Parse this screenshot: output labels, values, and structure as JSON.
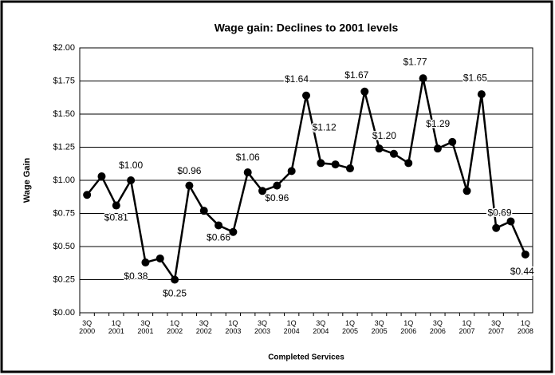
{
  "chart_data": {
    "type": "line",
    "title": "Wage gain:  Declines to 2001 levels",
    "x_label": "Completed Services",
    "y_label": "Wage Gain",
    "categories": [
      "3Q 2000",
      null,
      "1Q 2001",
      null,
      "3Q 2001",
      null,
      "1Q 2002",
      null,
      "3Q 2002",
      null,
      "1Q 2003",
      null,
      "3Q 2003",
      null,
      "1Q 2004",
      null,
      "3Q 2004",
      null,
      "1Q 2005",
      null,
      "3Q 2005",
      null,
      "1Q 2006",
      null,
      "3Q 2006",
      null,
      "1Q 2007",
      null,
      "3Q 2007",
      null,
      "1Q 2008"
    ],
    "series": [
      {
        "name": "Wage gain",
        "color": "#000000",
        "values": [
          0.89,
          1.03,
          0.81,
          1.0,
          0.38,
          0.41,
          0.25,
          0.96,
          0.77,
          0.66,
          0.61,
          1.06,
          0.92,
          0.96,
          1.07,
          1.64,
          1.13,
          1.12,
          1.09,
          1.67,
          1.24,
          1.2,
          1.13,
          1.77,
          1.24,
          1.29,
          0.92,
          1.65,
          0.64,
          0.69,
          0.44
        ],
        "value_labels": [
          null,
          null,
          "$0.81",
          "$1.00",
          "$0.38",
          null,
          "$0.25",
          "$0.96",
          null,
          "$0.66",
          null,
          "$1.06",
          null,
          "$0.96",
          null,
          "$1.64",
          null,
          "$1.12",
          null,
          "$1.67",
          null,
          "$1.20",
          null,
          "$1.77",
          null,
          "$1.29",
          null,
          "$1.65",
          null,
          "$0.69",
          "$0.44"
        ]
      }
    ],
    "ylim": [
      0,
      2
    ],
    "yticks": [
      {
        "value": 0,
        "label": "$0.00"
      },
      {
        "value": 0.25,
        "label": "$0.25"
      },
      {
        "value": 0.5,
        "label": "$0.50"
      },
      {
        "value": 0.75,
        "label": "$0.75"
      },
      {
        "value": 1,
        "label": "$1.00"
      },
      {
        "value": 1.25,
        "label": "$1.25"
      },
      {
        "value": 1.5,
        "label": "$1.50"
      },
      {
        "value": 1.75,
        "label": "$1.75"
      },
      {
        "value": 2,
        "label": "$2.00"
      }
    ],
    "grid": true
  }
}
